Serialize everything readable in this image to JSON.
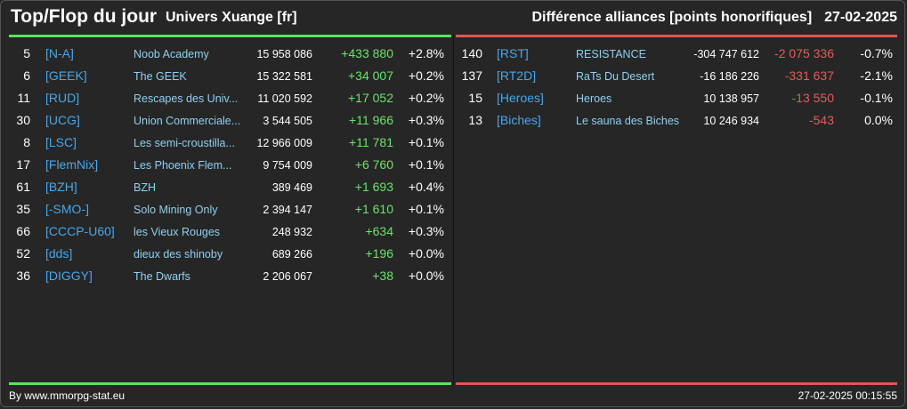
{
  "header": {
    "title": "Top/Flop du jour",
    "universe": "Univers Xuange [fr]",
    "subject": "Différence alliances [points honorifiques]",
    "date": "27-02-2025"
  },
  "top": [
    {
      "rank": "5",
      "tag": "[N-A]",
      "name": "Noob Academy",
      "points": "15 958 086",
      "diff": "+433 880",
      "pct": "+2.8%"
    },
    {
      "rank": "6",
      "tag": "[GEEK]",
      "name": "The GEEK",
      "points": "15 322 581",
      "diff": "+34 007",
      "pct": "+0.2%"
    },
    {
      "rank": "11",
      "tag": "[RUD]",
      "name": "Rescapes des Univ...",
      "points": "11 020 592",
      "diff": "+17 052",
      "pct": "+0.2%"
    },
    {
      "rank": "30",
      "tag": "[UCG]",
      "name": "Union Commerciale...",
      "points": "3 544 505",
      "diff": "+11 966",
      "pct": "+0.3%"
    },
    {
      "rank": "8",
      "tag": "[LSC]",
      "name": "Les semi-croustilla...",
      "points": "12 966 009",
      "diff": "+11 781",
      "pct": "+0.1%"
    },
    {
      "rank": "17",
      "tag": "[FlemNix]",
      "name": "Les Phoenix Flem...",
      "points": "9 754 009",
      "diff": "+6 760",
      "pct": "+0.1%"
    },
    {
      "rank": "61",
      "tag": "[BZH]",
      "name": "BZH",
      "points": "389 469",
      "diff": "+1 693",
      "pct": "+0.4%"
    },
    {
      "rank": "35",
      "tag": "[-SMO-]",
      "name": "Solo Mining Only",
      "points": "2 394 147",
      "diff": "+1 610",
      "pct": "+0.1%"
    },
    {
      "rank": "66",
      "tag": "[CCCP-U60]",
      "name": "les Vieux Rouges",
      "points": "248 932",
      "diff": "+634",
      "pct": "+0.3%"
    },
    {
      "rank": "52",
      "tag": "[dds]",
      "name": "dieux des shinoby",
      "points": "689 266",
      "diff": "+196",
      "pct": "+0.0%"
    },
    {
      "rank": "36",
      "tag": "[DIGGY]",
      "name": "The Dwarfs",
      "points": "2 206 067",
      "diff": "+38",
      "pct": "+0.0%"
    }
  ],
  "flop": [
    {
      "rank": "140",
      "tag": "[RST]",
      "name": "RESISTANCE",
      "points": "-304 747 612",
      "diff": "-2 075 336",
      "pct": "-0.7%"
    },
    {
      "rank": "137",
      "tag": "[RT2D]",
      "name": "RaTs Du Desert",
      "points": "-16 186 226",
      "diff": "-331 637",
      "pct": "-2.1%"
    },
    {
      "rank": "15",
      "tag": "[Heroes]",
      "name": "Heroes",
      "points": "10 138 957",
      "diff": "-13 550",
      "pct": "-0.1%"
    },
    {
      "rank": "13",
      "tag": "[Biches]",
      "name": "Le sauna des Biches",
      "points": "10 246 934",
      "diff": "-543",
      "pct": "0.0%"
    }
  ],
  "footer": {
    "source": "By www.mmorpg-stat.eu",
    "timestamp": "27-02-2025 00:15:55"
  },
  "colors": {
    "background": "#262626",
    "positive": "#6be36b",
    "negative": "#e85a5a",
    "tag": "#4aa6e8",
    "name": "#8fd0f0"
  }
}
